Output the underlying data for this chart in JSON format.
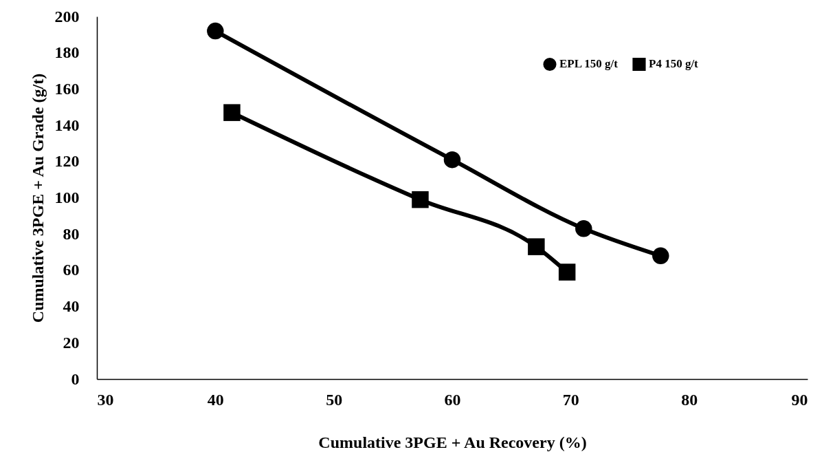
{
  "chart_data": {
    "type": "line",
    "xlabel": "Cumulative 3PGE + Au  Recovery (%)",
    "ylabel": "Cumulative  3PGE + Au Grade (g/t)",
    "xlim": [
      30,
      90
    ],
    "xticks": [
      30,
      40,
      50,
      60,
      70,
      80,
      90
    ],
    "ylim": [
      0,
      200
    ],
    "yticks": [
      0,
      20,
      40,
      60,
      80,
      100,
      120,
      140,
      160,
      180,
      200
    ],
    "grid": false,
    "legend": "top right",
    "line_style": "solid",
    "series": [
      {
        "name": "EPL 150 g/t",
        "color": "#000000",
        "marker": "circle",
        "x": [
          40.0,
          60.0,
          71.1,
          77.6
        ],
        "values": [
          192,
          121,
          83,
          68
        ]
      },
      {
        "name": "P4 150 g/t",
        "color": "#000000",
        "marker": "square",
        "x": [
          41.4,
          57.3,
          67.1,
          69.7
        ],
        "values": [
          147,
          99,
          73,
          59
        ]
      }
    ]
  }
}
